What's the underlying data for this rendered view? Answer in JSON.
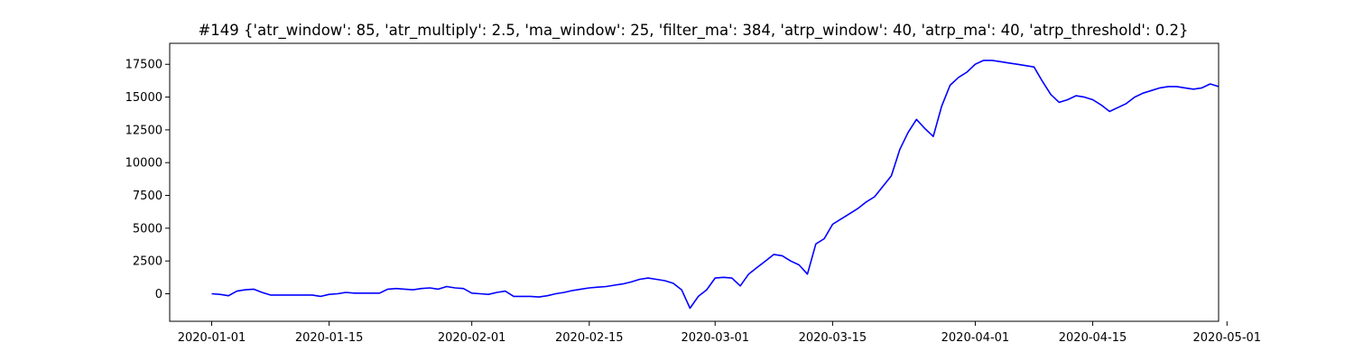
{
  "chart_data": {
    "type": "line",
    "title": "#149 {'atr_window': 85, 'atr_multiply': 2.5, 'ma_window': 25, 'filter_ma': 384, 'atrp_window': 40, 'atrp_ma': 40, 'atrp_threshold': 0.2}",
    "xlabel": "",
    "ylabel": "",
    "x_axis_type": "date",
    "xlim": [
      "2019-12-27",
      "2020-04-30"
    ],
    "ylim": [
      -2100,
      19100
    ],
    "x_ticks": [
      "2020-01-01",
      "2020-01-15",
      "2020-02-01",
      "2020-02-15",
      "2020-03-01",
      "2020-03-15",
      "2020-04-01",
      "2020-04-15",
      "2020-05-01"
    ],
    "y_ticks": [
      0,
      2500,
      5000,
      7500,
      10000,
      12500,
      15000,
      17500
    ],
    "grid": false,
    "legend": "none",
    "series_color": "#0000ff",
    "series": [
      {
        "x": [
          "2020-01-01",
          "2020-01-02",
          "2020-01-03",
          "2020-01-04",
          "2020-01-05",
          "2020-01-06",
          "2020-01-07",
          "2020-01-08",
          "2020-01-09",
          "2020-01-10",
          "2020-01-11",
          "2020-01-12",
          "2020-01-13",
          "2020-01-14",
          "2020-01-15",
          "2020-01-16",
          "2020-01-17",
          "2020-01-18",
          "2020-01-19",
          "2020-01-20",
          "2020-01-21",
          "2020-01-22",
          "2020-01-23",
          "2020-01-24",
          "2020-01-25",
          "2020-01-26",
          "2020-01-27",
          "2020-01-28",
          "2020-01-29",
          "2020-01-30",
          "2020-01-31",
          "2020-02-01",
          "2020-02-02",
          "2020-02-03",
          "2020-02-04",
          "2020-02-05",
          "2020-02-06",
          "2020-02-07",
          "2020-02-08",
          "2020-02-09",
          "2020-02-10",
          "2020-02-11",
          "2020-02-12",
          "2020-02-13",
          "2020-02-14",
          "2020-02-15",
          "2020-02-16",
          "2020-02-17",
          "2020-02-18",
          "2020-02-19",
          "2020-02-20",
          "2020-02-21",
          "2020-02-22",
          "2020-02-23",
          "2020-02-24",
          "2020-02-25",
          "2020-02-26",
          "2020-02-27",
          "2020-02-28",
          "2020-02-29",
          "2020-03-01",
          "2020-03-02",
          "2020-03-03",
          "2020-03-04",
          "2020-03-05",
          "2020-03-06",
          "2020-03-07",
          "2020-03-08",
          "2020-03-09",
          "2020-03-10",
          "2020-03-11",
          "2020-03-12",
          "2020-03-13",
          "2020-03-14",
          "2020-03-15",
          "2020-03-16",
          "2020-03-17",
          "2020-03-18",
          "2020-03-19",
          "2020-03-20",
          "2020-03-21",
          "2020-03-22",
          "2020-03-23",
          "2020-03-24",
          "2020-03-25",
          "2020-03-26",
          "2020-03-27",
          "2020-03-28",
          "2020-03-29",
          "2020-03-30",
          "2020-03-31",
          "2020-04-01",
          "2020-04-02",
          "2020-04-03",
          "2020-04-04",
          "2020-04-05",
          "2020-04-06",
          "2020-04-07",
          "2020-04-08",
          "2020-04-09",
          "2020-04-10",
          "2020-04-11",
          "2020-04-12",
          "2020-04-13",
          "2020-04-14",
          "2020-04-15",
          "2020-04-16",
          "2020-04-17",
          "2020-04-18",
          "2020-04-19",
          "2020-04-20",
          "2020-04-21",
          "2020-04-22",
          "2020-04-23",
          "2020-04-24",
          "2020-04-25",
          "2020-04-26",
          "2020-04-27",
          "2020-04-28",
          "2020-04-29",
          "2020-04-30"
        ],
        "values": [
          0,
          -50,
          -150,
          200,
          300,
          350,
          100,
          -100,
          -100,
          -100,
          -100,
          -100,
          -100,
          -200,
          -50,
          0,
          100,
          50,
          50,
          50,
          50,
          350,
          400,
          350,
          300,
          400,
          450,
          350,
          550,
          450,
          400,
          50,
          0,
          -50,
          100,
          200,
          -200,
          -200,
          -200,
          -250,
          -150,
          0,
          100,
          250,
          350,
          450,
          500,
          550,
          650,
          750,
          900,
          1100,
          1200,
          1100,
          1000,
          800,
          300,
          -1100,
          -200,
          300,
          1200,
          1250,
          1200,
          600,
          1500,
          2000,
          2500,
          3000,
          2900,
          2500,
          2200,
          1500,
          3800,
          4200,
          5300,
          5700,
          6100,
          6500,
          7000,
          7400,
          8200,
          9000,
          11000,
          12300,
          13300,
          12600,
          12000,
          14300,
          15900,
          16500,
          16900,
          17500,
          17800,
          17800,
          17700,
          17600,
          17500,
          17400,
          17300,
          16200,
          15200,
          14600,
          14800,
          15100,
          15000,
          14800,
          14400,
          13900,
          14200,
          14500,
          15000,
          15300,
          15500,
          15700,
          15800,
          15800,
          15700,
          15600,
          15700,
          16000,
          15800
        ]
      }
    ]
  }
}
